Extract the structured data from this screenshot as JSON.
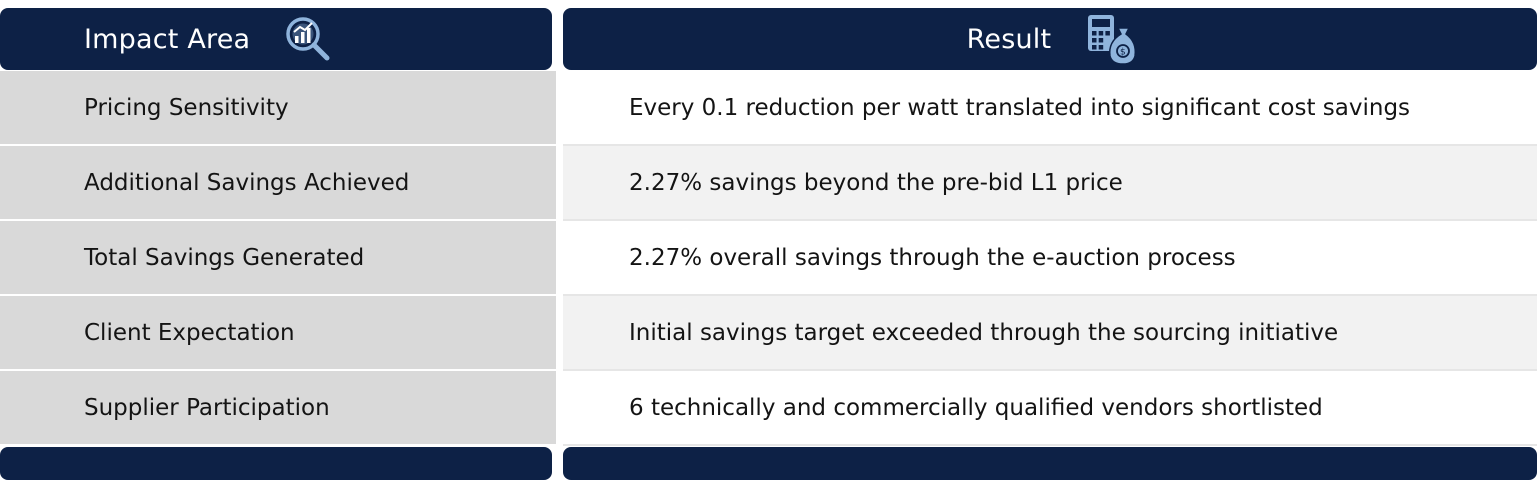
{
  "table": {
    "header": {
      "left_title": "Impact Area",
      "left_icon": "chart-magnifier-icon",
      "right_title": "Result",
      "right_icon": "calculator-money-bag-icon"
    },
    "rows": [
      {
        "area": "Pricing Sensitivity",
        "result": "Every 0.1 reduction per watt translated into significant cost savings"
      },
      {
        "area": "Additional Savings Achieved",
        "result": "2.27% savings beyond the pre-bid L1 price"
      },
      {
        "area": "Total Savings Generated",
        "result": "2.27% overall savings through the e-auction process"
      },
      {
        "area": "Client Expectation",
        "result": "Initial savings target exceeded through the sourcing initiative"
      },
      {
        "area": "Supplier Participation",
        "result": "6 technically and commercially qualified vendors shortlisted"
      }
    ]
  },
  "colors": {
    "header_bg": "#0d2146",
    "left_cell_bg": "#d9d9d9",
    "right_alt_bg": "#f2f2f2",
    "icon_color": "#8fb4dc"
  }
}
